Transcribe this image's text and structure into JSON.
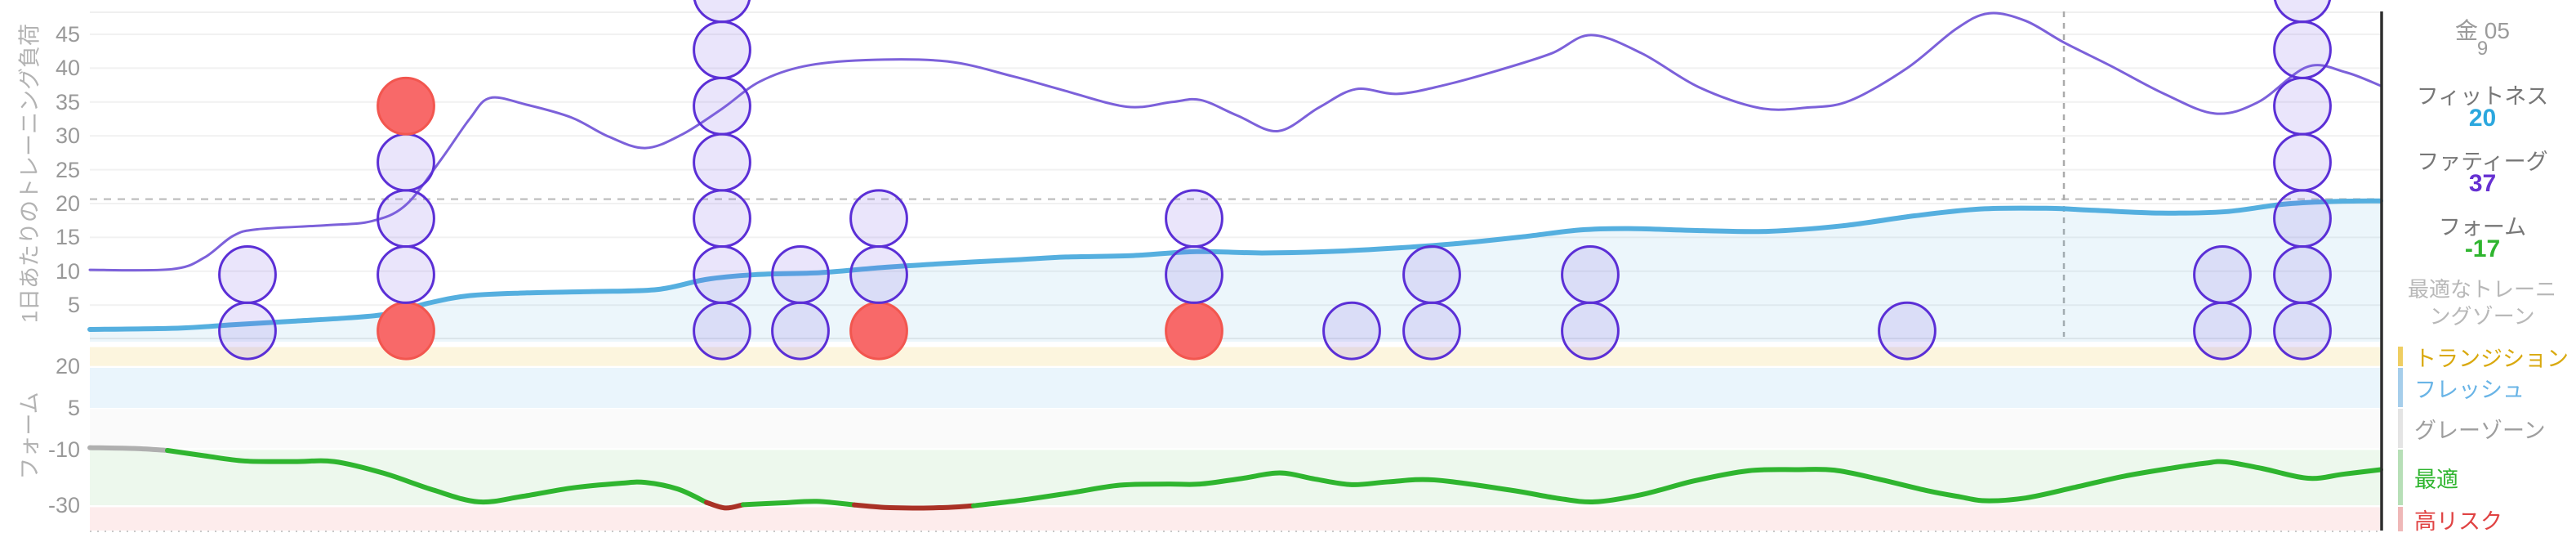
{
  "page_bg": "#ffffff",
  "panel": {
    "date_line1": "金 05",
    "date_line2": "9",
    "metrics": [
      {
        "label": "フィットネス",
        "value": "20",
        "color": "#2BA7DE"
      },
      {
        "label": "ファティーグ",
        "value": "37",
        "color": "#6630D2"
      },
      {
        "label": "フォーム",
        "value": "-17",
        "color": "#2FB52F"
      }
    ],
    "zone_note": "最適なトレーニングゾーン",
    "zones": [
      {
        "label": "トランジション",
        "label_color": "#D9A90F",
        "bar_color": "#EFCE62"
      },
      {
        "label": "フレッシュ",
        "label_color": "#69B4E6",
        "bar_color": "#A6CEEB"
      },
      {
        "label": "グレーゾーン",
        "label_color": "#9E9E9E",
        "bar_color": "#E4E4E4"
      },
      {
        "label": "最適",
        "label_color": "#2FB52F",
        "bar_color": "#B7DFB7"
      },
      {
        "label": "高リスク",
        "label_color": "#E04343",
        "bar_color": "#EFB8B8"
      }
    ]
  },
  "chart_data": [
    {
      "type": "line",
      "id": "training-load",
      "ylabel": "1日あたりのトレーニング負荷",
      "y_ticks": [
        45,
        40,
        35,
        30,
        25,
        20,
        15,
        10,
        5
      ],
      "ylim": [
        0,
        48.5
      ],
      "x_unit": "px",
      "grid": true,
      "dashed_hline": 20.65,
      "dashed_vline_x": 2527,
      "series": [
        {
          "name": "ファティーグ",
          "color": "#7C61DA",
          "width": 3,
          "points": [
            [
              110,
              10.2
            ],
            [
              210,
              10.3
            ],
            [
              250,
              12.0
            ],
            [
              285,
              15.2
            ],
            [
              315,
              16.2
            ],
            [
              400,
              16.8
            ],
            [
              455,
              17.4
            ],
            [
              497,
              19.8
            ],
            [
              540,
              26.5
            ],
            [
              575,
              32.5
            ],
            [
              600,
              35.6
            ],
            [
              645,
              34.6
            ],
            [
              700,
              32.7
            ],
            [
              745,
              29.9
            ],
            [
              790,
              28.2
            ],
            [
              835,
              30.2
            ],
            [
              884,
              34.0
            ],
            [
              930,
              38.0
            ],
            [
              985,
              40.3
            ],
            [
              1060,
              41.2
            ],
            [
              1160,
              41.0
            ],
            [
              1240,
              38.8
            ],
            [
              1300,
              36.8
            ],
            [
              1380,
              34.3
            ],
            [
              1435,
              35.0
            ],
            [
              1470,
              35.3
            ],
            [
              1515,
              33.0
            ],
            [
              1565,
              30.7
            ],
            [
              1615,
              34.2
            ],
            [
              1660,
              36.9
            ],
            [
              1710,
              36.2
            ],
            [
              1765,
              37.4
            ],
            [
              1835,
              39.7
            ],
            [
              1900,
              42.2
            ],
            [
              1948,
              44.9
            ],
            [
              2010,
              42.2
            ],
            [
              2080,
              37.2
            ],
            [
              2155,
              34.1
            ],
            [
              2215,
              34.2
            ],
            [
              2265,
              35.2
            ],
            [
              2335,
              40.0
            ],
            [
              2395,
              45.8
            ],
            [
              2435,
              48.1
            ],
            [
              2480,
              47.0
            ],
            [
              2527,
              43.8
            ],
            [
              2585,
              40.3
            ],
            [
              2650,
              36.2
            ],
            [
              2712,
              33.3
            ],
            [
              2765,
              35.0
            ],
            [
              2825,
              40.2
            ],
            [
              2872,
              39.4
            ],
            [
              2915,
              37.4
            ]
          ]
        },
        {
          "name": "フィットネス",
          "color": "#55AFDF",
          "width": 6,
          "area": true,
          "area_color": "rgba(109,182,226,0.13)",
          "points": [
            [
              110,
              1.4
            ],
            [
              220,
              1.6
            ],
            [
              285,
              2.1
            ],
            [
              355,
              2.6
            ],
            [
              425,
              3.1
            ],
            [
              475,
              3.7
            ],
            [
              525,
              5.3
            ],
            [
              575,
              6.4
            ],
            [
              645,
              6.8
            ],
            [
              725,
              7.0
            ],
            [
              805,
              7.3
            ],
            [
              865,
              8.8
            ],
            [
              925,
              9.5
            ],
            [
              1005,
              9.8
            ],
            [
              1085,
              10.6
            ],
            [
              1165,
              11.2
            ],
            [
              1245,
              11.7
            ],
            [
              1305,
              12.1
            ],
            [
              1385,
              12.3
            ],
            [
              1465,
              12.9
            ],
            [
              1545,
              12.7
            ],
            [
              1625,
              12.9
            ],
            [
              1705,
              13.4
            ],
            [
              1785,
              14.1
            ],
            [
              1865,
              15.1
            ],
            [
              1935,
              16.1
            ],
            [
              1995,
              16.3
            ],
            [
              2085,
              16.0
            ],
            [
              2165,
              15.9
            ],
            [
              2255,
              16.7
            ],
            [
              2345,
              18.2
            ],
            [
              2425,
              19.2
            ],
            [
              2505,
              19.3
            ],
            [
              2565,
              19.0
            ],
            [
              2645,
              18.6
            ],
            [
              2725,
              18.8
            ],
            [
              2795,
              19.9
            ],
            [
              2855,
              20.3
            ],
            [
              2915,
              20.4
            ]
          ]
        }
      ],
      "bubbles": {
        "radius_px": 34.4,
        "base_value": 1.2,
        "step_value": 8.3,
        "colors": {
          "purple": {
            "fill": "rgba(124,96,230,0.16)",
            "stroke": "#5B2FD6"
          },
          "red": {
            "fill": "#F86969",
            "stroke": "#F2564F"
          }
        },
        "stacks": [
          {
            "x": 303,
            "seq": [
              "purple",
              "purple"
            ]
          },
          {
            "x": 497,
            "seq": [
              "red",
              "purple",
              "purple",
              "purple",
              "red"
            ]
          },
          {
            "x": 884,
            "seq": [
              "purple",
              "purple",
              "purple",
              "purple",
              "purple",
              "purple",
              "purple"
            ]
          },
          {
            "x": 980,
            "seq": [
              "purple",
              "purple"
            ]
          },
          {
            "x": 1076,
            "seq": [
              "red",
              "purple",
              "purple"
            ]
          },
          {
            "x": 1462,
            "seq": [
              "red",
              "purple",
              "purple"
            ]
          },
          {
            "x": 1655,
            "seq": [
              "purple"
            ]
          },
          {
            "x": 1753,
            "seq": [
              "purple",
              "purple"
            ]
          },
          {
            "x": 1947,
            "seq": [
              "purple",
              "purple"
            ]
          },
          {
            "x": 2335,
            "seq": [
              "purple"
            ]
          },
          {
            "x": 2721,
            "seq": [
              "purple",
              "purple"
            ]
          },
          {
            "x": 2819,
            "seq": [
              "purple",
              "purple",
              "purple",
              "purple",
              "purple",
              "purple",
              "purple"
            ]
          }
        ]
      }
    },
    {
      "type": "line",
      "id": "form",
      "ylabel": "フォーム",
      "y_ticks": [
        20,
        5,
        -10,
        -30
      ],
      "ylim": [
        -39,
        27
      ],
      "x_unit": "px",
      "zones": [
        {
          "label": "トランジション",
          "color": "#FCF5DE",
          "v_top": 26.9,
          "v_bottom": 20.1
        },
        {
          "label": "フレッシュ",
          "color": "#EAF5FC",
          "v_top": 19.4,
          "v_bottom": 5.0
        },
        {
          "label": "グレーゾーン",
          "color": "#FAFAFA",
          "v_top": 4.6,
          "v_bottom": -9.5
        },
        {
          "label": "最適",
          "color": "#EDF8ED",
          "v_top": -10.1,
          "v_bottom": -30.0
        },
        {
          "label": "高リスク",
          "color": "#FDECEC",
          "v_top": -30.7,
          "v_bottom": -39.1
        }
      ],
      "series": [
        {
          "name": "フォーム",
          "width": 6,
          "segments": [
            {
              "color": "#AFAFAF",
              "points": [
                [
                  110,
                  -9.3
                ],
                [
                  165,
                  -9.6
                ],
                [
                  205,
                  -10.3
                ]
              ]
            },
            {
              "color": "#2FB52F",
              "points": [
                [
                  205,
                  -10.3
                ],
                [
                  250,
                  -12.2
                ],
                [
                  300,
                  -14.1
                ],
                [
                  360,
                  -14.3
                ],
                [
                  409,
                  -14.3
                ],
                [
                  470,
                  -18.5
                ],
                [
                  530,
                  -24.5
                ],
                [
                  586,
                  -28.8
                ],
                [
                  640,
                  -26.8
                ],
                [
                  700,
                  -23.8
                ],
                [
                  760,
                  -22.1
                ],
                [
                  790,
                  -21.8
                ],
                [
                  830,
                  -24.2
                ],
                [
                  865,
                  -29.0
                ]
              ]
            },
            {
              "color": "#A93226",
              "points": [
                [
                  865,
                  -29.0
                ],
                [
                  888,
                  -31.0
                ],
                [
                  910,
                  -29.8
                ]
              ]
            },
            {
              "color": "#2FB52F",
              "points": [
                [
                  910,
                  -29.8
                ],
                [
                  955,
                  -29.2
                ],
                [
                  1000,
                  -28.6
                ],
                [
                  1046,
                  -29.9
                ]
              ]
            },
            {
              "color": "#A93226",
              "points": [
                [
                  1046,
                  -29.9
                ],
                [
                  1090,
                  -30.9
                ],
                [
                  1150,
                  -30.9
                ],
                [
                  1192,
                  -30.2
                ]
              ]
            },
            {
              "color": "#2FB52F",
              "points": [
                [
                  1192,
                  -30.2
                ],
                [
                  1250,
                  -28.2
                ],
                [
                  1310,
                  -25.6
                ],
                [
                  1371,
                  -22.8
                ],
                [
                  1430,
                  -22.4
                ],
                [
                  1469,
                  -22.4
                ],
                [
                  1520,
                  -20.4
                ],
                [
                  1567,
                  -18.4
                ],
                [
                  1610,
                  -20.6
                ],
                [
                  1655,
                  -22.6
                ],
                [
                  1700,
                  -21.6
                ],
                [
                  1756,
                  -20.9
                ],
                [
                  1850,
                  -24.6
                ],
                [
                  1905,
                  -27.4
                ],
                [
                  1952,
                  -28.8
                ],
                [
                  2010,
                  -26.2
                ],
                [
                  2075,
                  -21.2
                ],
                [
                  2141,
                  -17.6
                ],
                [
                  2200,
                  -17.2
                ],
                [
                  2246,
                  -17.4
                ],
                [
                  2300,
                  -20.6
                ],
                [
                  2360,
                  -24.8
                ],
                [
                  2400,
                  -27.0
                ],
                [
                  2431,
                  -28.4
                ],
                [
                  2480,
                  -27.4
                ],
                [
                  2540,
                  -23.6
                ],
                [
                  2600,
                  -19.6
                ],
                [
                  2660,
                  -16.6
                ],
                [
                  2700,
                  -14.9
                ],
                [
                  2725,
                  -14.4
                ],
                [
                  2770,
                  -16.8
                ],
                [
                  2826,
                  -20.3
                ],
                [
                  2870,
                  -18.8
                ],
                [
                  2915,
                  -17.2
                ]
              ]
            }
          ]
        }
      ]
    }
  ]
}
